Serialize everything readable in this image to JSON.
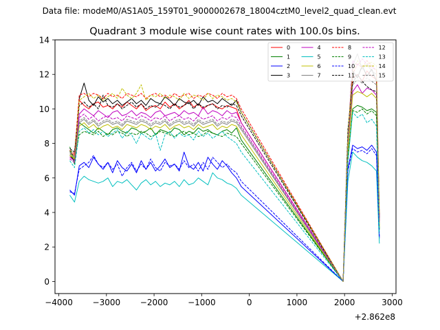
{
  "figure": {
    "suptitle": "Data file: modeM0/AS1A05_159T01_9000002678_18004cztM0_level2_quad_clean.evt",
    "x_offset_label": "+2.862e8"
  },
  "chart_data": {
    "type": "line",
    "title": "Quadrant 3 module wise count rates with 100.0s bins.",
    "xlabel": "",
    "ylabel": "",
    "xlim": [
      -4080,
      3080
    ],
    "ylim": [
      -0.7,
      14
    ],
    "x_offset": 286200000,
    "x_ticks": [
      -4000,
      -3000,
      -2000,
      -1000,
      0,
      1000,
      2000,
      3000
    ],
    "x_tick_labels": [
      "−4000",
      "−3000",
      "−2000",
      "−1000",
      "0",
      "1000",
      "2000",
      "3000"
    ],
    "y_ticks": [
      0,
      2,
      4,
      6,
      8,
      10,
      12,
      14
    ],
    "y_tick_labels": [
      "0",
      "2",
      "4",
      "6",
      "8",
      "10",
      "12",
      "14"
    ],
    "grid": false,
    "legend": {
      "placement": "top-right",
      "columns": 4
    },
    "x": [
      -3770,
      -3670,
      -3570,
      -3470,
      -3370,
      -3270,
      -3170,
      -3070,
      -2970,
      -2870,
      -2770,
      -2670,
      -2570,
      -2470,
      -2370,
      -2270,
      -2170,
      -2070,
      -1970,
      -1870,
      -1770,
      -1670,
      -1570,
      -1470,
      -1370,
      -1270,
      -1170,
      -1070,
      -970,
      -870,
      -770,
      -670,
      -570,
      -470,
      -370,
      -270,
      -170,
      1970,
      2070,
      2170,
      2270,
      2370,
      2470,
      2570,
      2670,
      2730
    ],
    "gap": {
      "x_start": -170,
      "x_end": 1970,
      "value": 0.0
    },
    "series": [
      {
        "name": "0",
        "color": "#ff0000",
        "dash": "solid",
        "values": [
          7.5,
          7.3,
          10.5,
          10.2,
          10.0,
          10.3,
          10.4,
          10.1,
          10.2,
          10.0,
          10.3,
          10.1,
          10.4,
          10.2,
          10.0,
          10.3,
          9.9,
          10.1,
          10.2,
          10.0,
          10.4,
          10.1,
          10.3,
          10.0,
          10.2,
          10.5,
          10.1,
          10.3,
          10.0,
          10.2,
          10.3,
          10.1,
          10.0,
          10.2,
          10.1,
          10.0,
          9.2,
          0.0,
          8.0,
          11.8,
          12.0,
          11.6,
          12.2,
          11.9,
          11.7,
          3.5
        ]
      },
      {
        "name": "1",
        "color": "#008000",
        "dash": "solid",
        "values": [
          7.6,
          6.8,
          9.2,
          9.0,
          8.8,
          8.6,
          8.9,
          8.7,
          8.5,
          8.8,
          8.9,
          8.7,
          8.6,
          8.9,
          8.8,
          8.6,
          8.7,
          8.9,
          8.5,
          8.8,
          8.7,
          8.6,
          8.9,
          8.8,
          8.5,
          8.7,
          8.6,
          8.9,
          8.7,
          8.8,
          8.6,
          8.5,
          8.7,
          8.8,
          8.6,
          8.9,
          8.2,
          0.0,
          7.0,
          10.0,
          10.2,
          10.1,
          9.9,
          10.0,
          9.8,
          3.0
        ]
      },
      {
        "name": "2",
        "color": "#0000ff",
        "dash": "solid",
        "values": [
          5.3,
          5.0,
          6.7,
          6.9,
          6.6,
          7.2,
          6.8,
          6.5,
          6.9,
          6.3,
          7.0,
          6.6,
          6.4,
          6.8,
          6.3,
          7.0,
          6.5,
          6.9,
          6.4,
          6.7,
          7.1,
          6.6,
          6.8,
          6.4,
          7.5,
          6.7,
          6.5,
          6.9,
          6.4,
          7.2,
          6.8,
          6.5,
          7.0,
          6.7,
          6.3,
          6.0,
          5.5,
          0.0,
          6.5,
          7.9,
          7.7,
          7.8,
          7.6,
          7.9,
          7.5,
          2.5
        ]
      },
      {
        "name": "3",
        "color": "#000000",
        "dash": "solid",
        "values": [
          7.3,
          7.0,
          10.6,
          11.5,
          10.5,
          10.2,
          10.7,
          10.4,
          10.6,
          10.3,
          10.5,
          10.2,
          10.4,
          10.6,
          10.3,
          10.5,
          10.2,
          10.6,
          10.4,
          10.3,
          10.7,
          10.5,
          10.2,
          10.6,
          10.4,
          10.3,
          10.5,
          10.2,
          10.7,
          10.4,
          10.5,
          10.3,
          10.6,
          10.4,
          10.2,
          10.5,
          9.8,
          0.0,
          8.5,
          12.2,
          11.8,
          12.5,
          11.9,
          12.3,
          11.6,
          3.8
        ]
      },
      {
        "name": "4",
        "color": "#bf00bf",
        "dash": "solid",
        "values": [
          7.2,
          7.0,
          9.7,
          10.0,
          9.8,
          9.6,
          9.9,
          9.7,
          9.5,
          9.8,
          9.9,
          9.6,
          9.7,
          9.9,
          9.6,
          9.8,
          9.7,
          9.5,
          9.8,
          9.9,
          9.6,
          9.7,
          9.8,
          9.6,
          9.9,
          9.7,
          9.8,
          9.6,
          10.1,
          9.7,
          9.9,
          9.8,
          9.6,
          9.9,
          9.7,
          9.8,
          9.2,
          0.0,
          8.0,
          11.0,
          11.4,
          10.9,
          11.2,
          11.1,
          10.8,
          3.4
        ]
      },
      {
        "name": "5",
        "color": "#00bfbf",
        "dash": "solid",
        "values": [
          5.0,
          4.6,
          5.8,
          6.1,
          5.9,
          5.8,
          5.7,
          5.8,
          6.0,
          5.5,
          5.8,
          5.7,
          5.9,
          5.6,
          5.3,
          5.7,
          5.9,
          5.6,
          5.8,
          5.5,
          5.7,
          5.6,
          5.8,
          5.5,
          5.9,
          5.6,
          5.7,
          6.0,
          5.8,
          5.6,
          6.3,
          6.0,
          5.9,
          5.7,
          5.6,
          5.4,
          5.0,
          0.0,
          5.8,
          7.5,
          7.2,
          7.0,
          6.9,
          6.7,
          6.4,
          2.2
        ]
      },
      {
        "name": "6",
        "color": "#bfbf00",
        "dash": "solid",
        "values": [
          7.4,
          7.1,
          9.0,
          9.2,
          8.9,
          9.1,
          8.8,
          9.0,
          9.1,
          8.9,
          9.0,
          8.8,
          9.1,
          9.0,
          8.9,
          9.1,
          9.0,
          8.8,
          9.0,
          8.9,
          9.1,
          8.8,
          9.0,
          9.1,
          8.9,
          9.0,
          8.8,
          9.1,
          8.9,
          9.0,
          9.1,
          8.8,
          9.0,
          8.9,
          9.1,
          9.0,
          8.5,
          0.0,
          7.5,
          10.8,
          11.0,
          10.9,
          10.7,
          10.9,
          10.6,
          3.2
        ]
      },
      {
        "name": "7",
        "color": "#808080",
        "dash": "solid",
        "values": [
          7.5,
          7.2,
          9.2,
          9.4,
          9.1,
          9.3,
          9.0,
          9.2,
          9.3,
          9.1,
          9.2,
          9.0,
          9.3,
          9.2,
          9.1,
          9.3,
          9.2,
          9.0,
          9.2,
          9.1,
          9.3,
          9.0,
          9.2,
          9.3,
          9.1,
          9.2,
          9.0,
          9.3,
          9.1,
          9.2,
          9.3,
          9.0,
          9.2,
          9.1,
          9.3,
          9.2,
          8.8,
          0.0,
          8.2,
          12.5,
          13.2,
          12.3,
          12.6,
          12.2,
          12.0,
          3.6
        ]
      },
      {
        "name": "8",
        "color": "#ff0000",
        "dash": "dashed",
        "values": [
          7.6,
          7.4,
          10.8,
          10.9,
          10.7,
          10.9,
          10.8,
          10.6,
          10.9,
          10.7,
          10.8,
          10.6,
          10.9,
          10.8,
          10.7,
          10.9,
          10.6,
          10.8,
          10.9,
          10.7,
          10.8,
          10.6,
          10.9,
          10.7,
          10.8,
          10.9,
          10.6,
          10.8,
          10.7,
          10.9,
          10.8,
          10.6,
          10.9,
          10.7,
          10.8,
          10.6,
          10.0,
          0.0,
          8.5,
          12.0,
          12.6,
          12.4,
          12.8,
          12.5,
          12.2,
          3.8
        ]
      },
      {
        "name": "9",
        "color": "#008000",
        "dash": "dashed",
        "values": [
          7.8,
          7.0,
          8.5,
          8.7,
          8.6,
          8.5,
          8.7,
          8.4,
          8.6,
          8.5,
          8.7,
          8.6,
          8.4,
          8.6,
          8.5,
          8.7,
          8.6,
          8.4,
          8.5,
          8.7,
          8.6,
          8.5,
          8.4,
          8.6,
          8.7,
          8.5,
          8.6,
          8.4,
          8.5,
          8.7,
          8.6,
          8.5,
          8.4,
          8.6,
          8.5,
          8.4,
          8.0,
          0.0,
          7.2,
          9.9,
          9.8,
          10.0,
          9.7,
          9.9,
          9.6,
          3.0
        ]
      },
      {
        "name": "10",
        "color": "#0000ff",
        "dash": "dashed",
        "values": [
          5.2,
          5.1,
          6.5,
          6.7,
          6.9,
          7.3,
          6.8,
          6.6,
          6.9,
          6.5,
          6.8,
          6.1,
          6.6,
          6.9,
          6.4,
          6.8,
          6.5,
          7.1,
          6.6,
          6.4,
          6.9,
          6.7,
          6.8,
          6.5,
          7.0,
          6.6,
          6.8,
          6.4,
          6.9,
          6.5,
          7.2,
          6.9,
          6.6,
          6.8,
          6.5,
          6.3,
          5.8,
          0.0,
          6.4,
          7.7,
          7.5,
          7.6,
          7.4,
          7.7,
          7.3,
          2.6
        ]
      },
      {
        "name": "11",
        "color": "#000000",
        "dash": "dashed",
        "values": [
          7.7,
          7.5,
          10.2,
          10.4,
          10.1,
          10.3,
          10.0,
          10.8,
          10.2,
          10.1,
          10.3,
          10.0,
          10.2,
          10.4,
          10.1,
          10.3,
          10.0,
          10.2,
          10.1,
          10.3,
          10.2,
          10.0,
          10.3,
          10.1,
          10.2,
          10.4,
          10.0,
          10.3,
          10.1,
          10.2,
          10.3,
          10.0,
          10.2,
          10.1,
          10.3,
          10.2,
          9.6,
          0.0,
          8.8,
          11.5,
          12.0,
          11.6,
          11.3,
          11.1,
          11.0,
          3.7
        ]
      },
      {
        "name": "12",
        "color": "#bf00bf",
        "dash": "dashed",
        "values": [
          7.1,
          6.9,
          9.5,
          9.7,
          9.4,
          9.6,
          9.3,
          9.5,
          9.6,
          9.4,
          9.5,
          9.3,
          9.6,
          9.5,
          9.4,
          9.6,
          9.5,
          9.3,
          9.5,
          9.4,
          9.6,
          9.3,
          9.5,
          9.6,
          9.4,
          9.5,
          9.3,
          9.6,
          9.4,
          9.5,
          9.6,
          9.3,
          9.5,
          9.4,
          9.6,
          9.5,
          9.0,
          0.0,
          8.3,
          12.8,
          12.5,
          12.9,
          12.6,
          12.4,
          12.3,
          3.6
        ]
      },
      {
        "name": "13",
        "color": "#00bfbf",
        "dash": "dashed",
        "values": [
          7.0,
          6.6,
          8.7,
          8.9,
          8.6,
          8.8,
          8.5,
          8.7,
          8.4,
          8.6,
          8.8,
          8.3,
          8.7,
          8.5,
          8.0,
          8.6,
          8.4,
          8.2,
          8.6,
          7.6,
          8.5,
          8.7,
          8.3,
          8.6,
          8.4,
          8.5,
          8.2,
          8.7,
          8.4,
          8.6,
          8.3,
          8.5,
          8.7,
          8.4,
          8.2,
          8.0,
          7.5,
          0.0,
          7.0,
          9.8,
          9.5,
          9.7,
          9.2,
          9.4,
          9.0,
          2.8
        ]
      },
      {
        "name": "14",
        "color": "#bfbf00",
        "dash": "dashed",
        "values": [
          7.3,
          7.1,
          10.5,
          10.7,
          10.9,
          10.6,
          10.8,
          10.5,
          10.7,
          10.9,
          10.6,
          11.2,
          10.8,
          10.6,
          10.9,
          11.4,
          10.5,
          10.8,
          10.7,
          10.9,
          10.6,
          10.8,
          10.7,
          10.5,
          10.9,
          10.6,
          10.8,
          10.7,
          10.5,
          10.9,
          10.6,
          10.8,
          10.7,
          10.5,
          10.6,
          10.4,
          9.8,
          0.0,
          8.5,
          12.2,
          12.8,
          12.4,
          12.6,
          12.7,
          12.5,
          3.9
        ]
      },
      {
        "name": "15",
        "color": "#808080",
        "dash": "dashed",
        "values": [
          7.4,
          7.2,
          9.3,
          9.5,
          9.2,
          9.4,
          9.1,
          9.3,
          9.4,
          9.2,
          9.3,
          9.1,
          9.4,
          9.3,
          9.2,
          9.4,
          9.3,
          9.1,
          9.3,
          9.2,
          9.4,
          9.1,
          9.3,
          9.4,
          9.2,
          9.3,
          9.1,
          9.4,
          9.2,
          9.3,
          9.4,
          9.1,
          9.3,
          9.2,
          9.4,
          9.3,
          8.9,
          0.0,
          8.1,
          11.4,
          11.7,
          11.5,
          11.8,
          11.6,
          11.4,
          3.5
        ]
      }
    ]
  }
}
